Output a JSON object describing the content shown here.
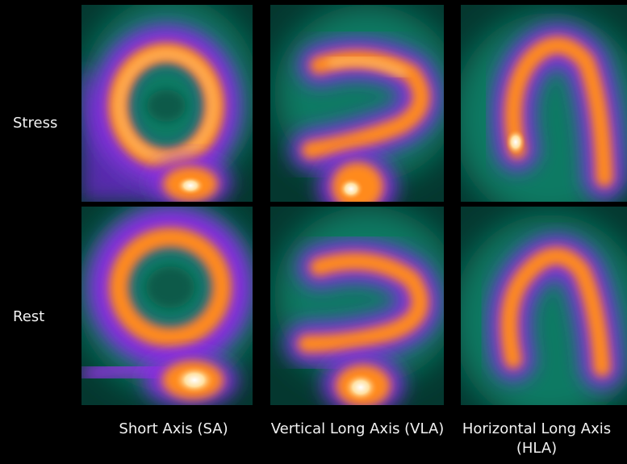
{
  "rows": [
    {
      "label": "Stress"
    },
    {
      "label": "Rest"
    }
  ],
  "columns": [
    {
      "label": "Short Axis (SA)"
    },
    {
      "label": "Vertical Long Axis (VLA)"
    },
    {
      "label": "Horizontal Long Axis (HLA)"
    }
  ],
  "colors": {
    "background": "#000000",
    "tissue": "#0f6b58",
    "purple": "#8a2be2",
    "orange": "#ff8a1f",
    "hot": "#fff6d0"
  }
}
